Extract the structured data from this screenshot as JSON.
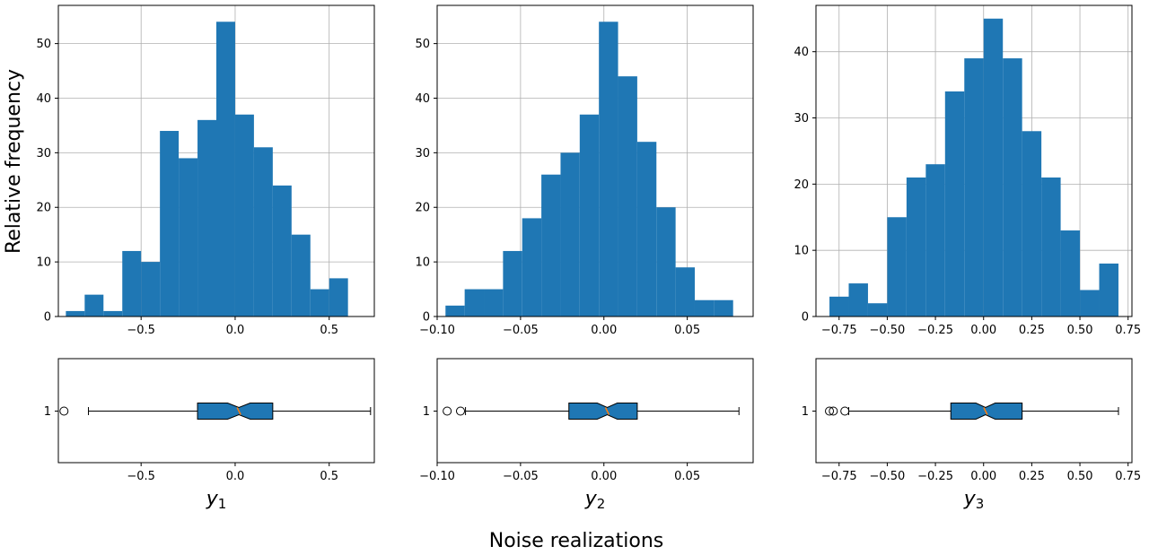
{
  "figure": {
    "ylabel": "Relative frequency",
    "xlabel": "Noise realizations"
  },
  "colors": {
    "bar": "#1f77b4",
    "grid": "#b0b0b0",
    "median": "#ff7f0e"
  },
  "chart_data": [
    {
      "type": "histogram",
      "variable": {
        "base": "y",
        "sub": "1"
      },
      "bin_edges": [
        -0.9,
        -0.8,
        -0.7,
        -0.6,
        -0.5,
        -0.4,
        -0.3,
        -0.2,
        -0.1,
        0.0,
        0.1,
        0.2,
        0.3,
        0.4,
        0.5,
        0.6,
        0.7
      ],
      "counts": [
        1,
        4,
        1,
        12,
        10,
        34,
        29,
        36,
        54,
        37,
        31,
        24,
        15,
        5,
        7,
        0
      ],
      "xlim": [
        -0.94,
        0.74
      ],
      "ylim": [
        0,
        57
      ],
      "xticks": [
        {
          "v": -0.5,
          "label": "−0.5"
        },
        {
          "v": 0.0,
          "label": "0.0"
        },
        {
          "v": 0.5,
          "label": "0.5"
        }
      ],
      "yticks": [
        {
          "v": 0,
          "label": "0"
        },
        {
          "v": 10,
          "label": "10"
        },
        {
          "v": 20,
          "label": "20"
        },
        {
          "v": 30,
          "label": "30"
        },
        {
          "v": 40,
          "label": "40"
        },
        {
          "v": 50,
          "label": "50"
        }
      ],
      "grid": true,
      "boxplot": {
        "notched": true,
        "category_label": "1",
        "q1": -0.2,
        "median": 0.02,
        "q3": 0.2,
        "notch_low": -0.04,
        "notch_high": 0.08,
        "whisker_low": -0.78,
        "whisker_high": 0.72,
        "outliers": [
          -0.91
        ]
      }
    },
    {
      "type": "histogram",
      "variable": {
        "base": "y",
        "sub": "2"
      },
      "bin_edges": [
        -0.095,
        -0.0835,
        -0.072,
        -0.0605,
        -0.049,
        -0.0375,
        -0.026,
        -0.0145,
        -0.003,
        0.0085,
        0.02,
        0.0315,
        0.043,
        0.0545,
        0.066,
        0.0775,
        0.089
      ],
      "counts": [
        2,
        5,
        5,
        12,
        18,
        26,
        30,
        37,
        54,
        44,
        32,
        20,
        9,
        3,
        3,
        0
      ],
      "xlim": [
        -0.1,
        0.0895
      ],
      "ylim": [
        0,
        57
      ],
      "xticks": [
        {
          "v": -0.1,
          "label": "−0.10"
        },
        {
          "v": -0.05,
          "label": "−0.05"
        },
        {
          "v": 0.0,
          "label": "0.00"
        },
        {
          "v": 0.05,
          "label": "0.05"
        }
      ],
      "yticks": [
        {
          "v": 0,
          "label": "0"
        },
        {
          "v": 10,
          "label": "10"
        },
        {
          "v": 20,
          "label": "20"
        },
        {
          "v": 30,
          "label": "30"
        },
        {
          "v": 40,
          "label": "40"
        },
        {
          "v": 50,
          "label": "50"
        }
      ],
      "grid": true,
      "boxplot": {
        "notched": true,
        "category_label": "1",
        "q1": -0.021,
        "median": 0.002,
        "q3": 0.02,
        "notch_low": -0.004,
        "notch_high": 0.008,
        "whisker_low": -0.083,
        "whisker_high": 0.081,
        "outliers": [
          -0.094,
          -0.086
        ]
      }
    },
    {
      "type": "histogram",
      "variable": {
        "base": "y",
        "sub": "3"
      },
      "bin_edges": [
        -0.8,
        -0.7,
        -0.6,
        -0.5,
        -0.4,
        -0.3,
        -0.2,
        -0.1,
        0.0,
        0.1,
        0.2,
        0.3,
        0.4,
        0.5,
        0.6,
        0.7
      ],
      "counts": [
        3,
        5,
        2,
        15,
        21,
        23,
        34,
        39,
        45,
        39,
        28,
        21,
        13,
        4,
        8
      ],
      "xlim": [
        -0.87,
        0.77
      ],
      "ylim": [
        0,
        47
      ],
      "xticks": [
        {
          "v": -0.75,
          "label": "−0.75"
        },
        {
          "v": -0.5,
          "label": "−0.50"
        },
        {
          "v": -0.25,
          "label": "−0.25"
        },
        {
          "v": 0.0,
          "label": "0.00"
        },
        {
          "v": 0.25,
          "label": "0.25"
        },
        {
          "v": 0.5,
          "label": "0.50"
        },
        {
          "v": 0.75,
          "label": "0.75"
        }
      ],
      "yticks": [
        {
          "v": 0,
          "label": "0"
        },
        {
          "v": 10,
          "label": "10"
        },
        {
          "v": 20,
          "label": "20"
        },
        {
          "v": 30,
          "label": "30"
        },
        {
          "v": 40,
          "label": "40"
        }
      ],
      "grid": true,
      "boxplot": {
        "notched": true,
        "category_label": "1",
        "q1": -0.17,
        "median": 0.01,
        "q3": 0.2,
        "notch_low": -0.04,
        "notch_high": 0.06,
        "whisker_low": -0.7,
        "whisker_high": 0.7,
        "outliers": [
          -0.8,
          -0.78,
          -0.72
        ]
      }
    }
  ]
}
